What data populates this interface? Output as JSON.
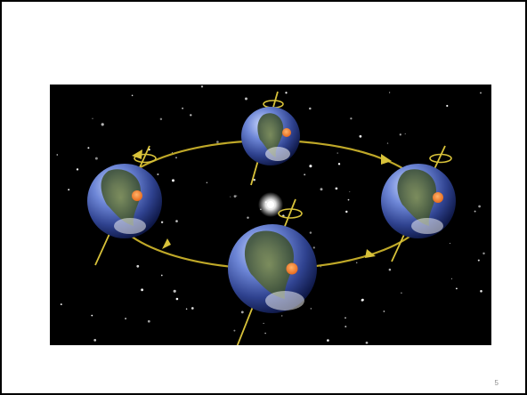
{
  "slide": {
    "page_number": "5",
    "background_color": "#ffffff"
  },
  "figure": {
    "description_icon": "earth-orbit-seasons-icon",
    "sky_color": "#000000",
    "orbit_color": "#c9b12a",
    "sun_color": "#ffffff",
    "earth_count": 4
  }
}
